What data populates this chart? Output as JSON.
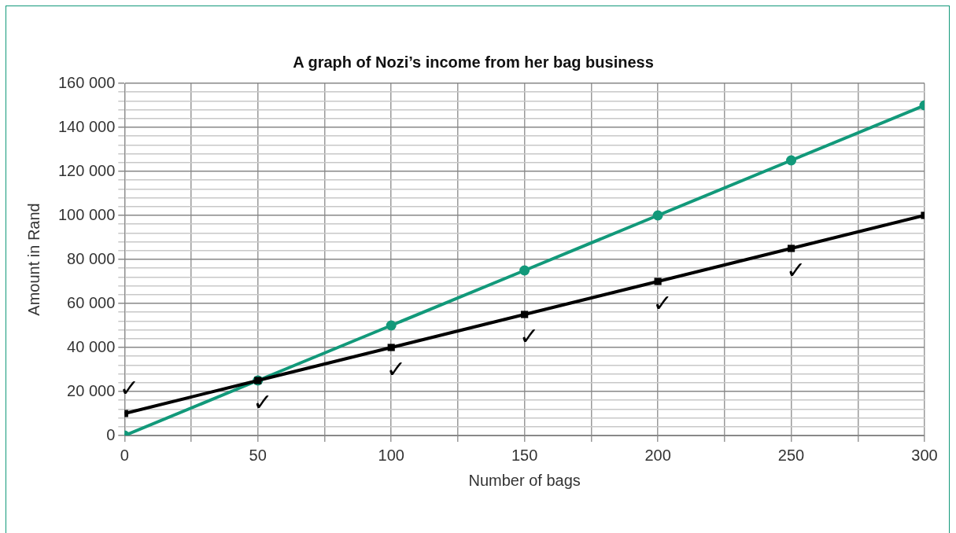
{
  "chart_data": {
    "type": "line",
    "title": "A graph of Nozi’s income from her bag business",
    "xlabel": "Number of bags",
    "ylabel": "Amount in Rand",
    "x": [
      0,
      50,
      100,
      150,
      200,
      250,
      300
    ],
    "series": [
      {
        "color": "#12997a",
        "marker": "circle",
        "values": [
          0,
          25000,
          50000,
          75000,
          100000,
          125000,
          150000
        ]
      },
      {
        "color": "#000000",
        "marker": "square",
        "values": [
          10000,
          25000,
          40000,
          55000,
          70000,
          85000,
          100000
        ]
      }
    ],
    "xlim": [
      0,
      300
    ],
    "xticks": [
      0,
      {
        "value": 25,
        "label": null
      },
      50,
      {
        "value": 75,
        "label": null
      },
      100,
      {
        "value": 125,
        "label": null
      },
      150,
      {
        "value": 175,
        "label": null
      },
      200,
      {
        "value": 225,
        "label": null
      },
      250,
      {
        "value": 275,
        "label": null
      },
      300
    ],
    "ylim": [
      0,
      160000
    ],
    "yticks": [
      0,
      {
        "value": 4000,
        "label": null
      },
      {
        "value": 8000,
        "label": null
      },
      {
        "value": 12000,
        "label": null
      },
      {
        "value": 16000,
        "label": null
      },
      {
        "value": 20000,
        "label": "20 000"
      },
      {
        "value": 24000,
        "label": null
      },
      {
        "value": 28000,
        "label": null
      },
      {
        "value": 32000,
        "label": null
      },
      {
        "value": 36000,
        "label": null
      },
      {
        "value": 40000,
        "label": "40 000"
      },
      {
        "value": 44000,
        "label": null
      },
      {
        "value": 48000,
        "label": null
      },
      {
        "value": 52000,
        "label": null
      },
      {
        "value": 56000,
        "label": null
      },
      {
        "value": 60000,
        "label": "60 000"
      },
      {
        "value": 64000,
        "label": null
      },
      {
        "value": 68000,
        "label": null
      },
      {
        "value": 72000,
        "label": null
      },
      {
        "value": 76000,
        "label": null
      },
      {
        "value": 80000,
        "label": "80 000"
      },
      {
        "value": 84000,
        "label": null
      },
      {
        "value": 88000,
        "label": null
      },
      {
        "value": 92000,
        "label": null
      },
      {
        "value": 96000,
        "label": null
      },
      {
        "value": 100000,
        "label": "100 000"
      },
      {
        "value": 104000,
        "label": null
      },
      {
        "value": 108000,
        "label": null
      },
      {
        "value": 112000,
        "label": null
      },
      {
        "value": 116000,
        "label": null
      },
      {
        "value": 120000,
        "label": "120 000"
      },
      {
        "value": 124000,
        "label": null
      },
      {
        "value": 128000,
        "label": null
      },
      {
        "value": 132000,
        "label": null
      },
      {
        "value": 136000,
        "label": null
      },
      {
        "value": 140000,
        "label": "140 000"
      },
      {
        "value": 144000,
        "label": null
      },
      {
        "value": 148000,
        "label": null
      },
      {
        "value": 152000,
        "label": null
      },
      {
        "value": 156000,
        "label": null
      },
      {
        "value": 160000,
        "label": "160 000"
      }
    ],
    "grid": true,
    "annotations": [
      {
        "text": "✓",
        "x": 0,
        "y": 10000
      },
      {
        "text": "✓",
        "x": 50,
        "y": 25000
      },
      {
        "text": "✓",
        "x": 100,
        "y": 40000
      },
      {
        "text": "✓",
        "x": 150,
        "y": 55000
      },
      {
        "text": "✓",
        "x": 200,
        "y": 70000
      },
      {
        "text": "✓",
        "x": 250,
        "y": 85000
      }
    ]
  }
}
